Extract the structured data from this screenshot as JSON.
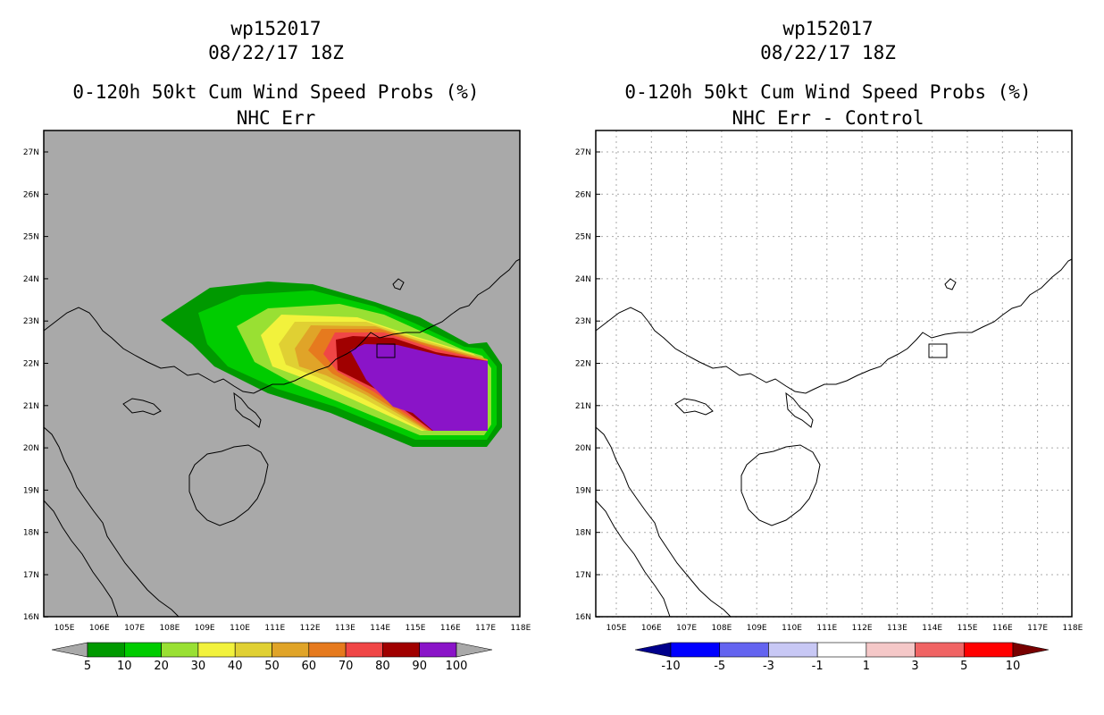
{
  "panels": [
    {
      "storm": "wp152017",
      "datetime": "08/22/17 18Z",
      "product": "0-120h 50kt Cum Wind Speed Probs (%)",
      "subtitle": "NHC Err",
      "background": "#a9a9a9",
      "lat_labels": [
        "27N",
        "26N",
        "25N",
        "24N",
        "23N",
        "22N",
        "21N",
        "20N",
        "19N",
        "18N",
        "17N",
        "16N"
      ],
      "lon_labels": [
        "105E",
        "106E",
        "107E",
        "108E",
        "109E",
        "110E",
        "111E",
        "112E",
        "113E",
        "114E",
        "115E",
        "116E",
        "117E",
        "118E"
      ],
      "colorbar": {
        "colors": [
          "#009900",
          "#00cc00",
          "#99e033",
          "#f2f23c",
          "#e0d033",
          "#e0a428",
          "#e67a1e",
          "#f04646",
          "#a00000",
          "#8a14c8"
        ],
        "labels": [
          "5",
          "10",
          "20",
          "30",
          "40",
          "50",
          "60",
          "70",
          "80",
          "90",
          "100"
        ],
        "left_arrow": "#a9a9a9",
        "right_arrow": "#a9a9a9"
      }
    },
    {
      "storm": "wp152017",
      "datetime": "08/22/17 18Z",
      "product": "0-120h 50kt Cum Wind Speed Probs (%)",
      "subtitle": "NHC Err - Control",
      "background": "#ffffff",
      "lat_labels": [
        "27N",
        "26N",
        "25N",
        "24N",
        "23N",
        "22N",
        "21N",
        "20N",
        "19N",
        "18N",
        "17N",
        "16N"
      ],
      "lon_labels": [
        "105E",
        "106E",
        "107E",
        "108E",
        "109E",
        "110E",
        "111E",
        "112E",
        "113E",
        "114E",
        "115E",
        "116E",
        "117E",
        "118E"
      ],
      "colorbar": {
        "colors": [
          "#0000ff",
          "#6464f0",
          "#c8c8f5",
          "#ffffff",
          "#f5c8c8",
          "#f06464",
          "#ff0000"
        ],
        "labels": [
          "-10",
          "-5",
          "-3",
          "-1",
          "1",
          "3",
          "5",
          "10"
        ],
        "left_arrow": "#00008c",
        "right_arrow": "#780000"
      }
    }
  ]
}
